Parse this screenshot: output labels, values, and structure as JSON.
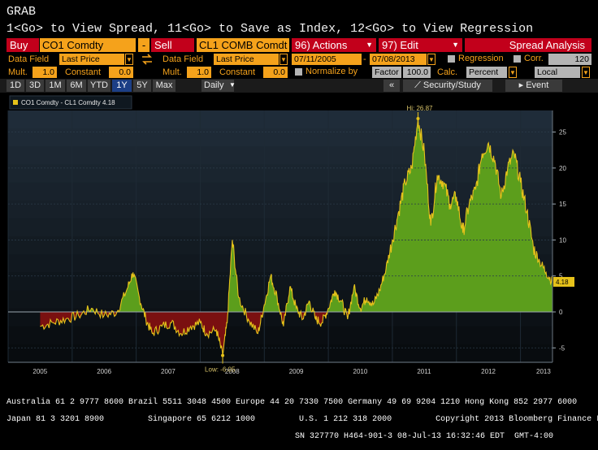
{
  "window": {
    "title": "GRAB",
    "hint": "1<Go> to View Spread, 11<Go> to Save as Index, 12<Go> to View Regression"
  },
  "row1": {
    "buy_label": "Buy",
    "security1": "CO1 Comdty",
    "operator": "-",
    "sell_label": "Sell",
    "security2": "CL1 COMB Comdt",
    "actions_label": "96) Actions",
    "edit_label": "97) Edit",
    "title_label": "Spread Analysis"
  },
  "row2": {
    "data_field_label1": "Data Field",
    "data_field_value1": "Last Price",
    "data_field_label2": "Data Field",
    "data_field_value2": "Last Price",
    "date_start": "07/11/2005",
    "date_end": "07/08/2013",
    "regression_label": "Regression",
    "corr_label": "Corr.",
    "corr_value": "120"
  },
  "row3": {
    "mult_label1": "Mult.",
    "mult_value1": "1.0",
    "constant_label1": "Constant",
    "constant_value1": "0.0",
    "mult_label2": "Mult.",
    "mult_value2": "1.0",
    "constant_label2": "Constant",
    "constant_value2": "0.0",
    "normalize_label": "Normalize by",
    "factor_label": "Factor",
    "factor_value": "100.0",
    "calc_label": "Calc.",
    "calc_value": "Percent",
    "ccy_value": "Local CCY"
  },
  "toolbar": {
    "periods": [
      "1D",
      "3D",
      "1M",
      "6M",
      "YTD",
      "1Y",
      "5Y",
      "Max"
    ],
    "selected_period": "1Y",
    "frequency": "Daily",
    "collapse_label": "«",
    "security_study_label": "Security/Study",
    "event_label": "Event"
  },
  "colors": {
    "positive_fill": "#5c9e1c",
    "negative_fill": "#7a1010",
    "line": "#e6c21a",
    "accent_orange": "#f5a21b",
    "accent_red": "#c2001b"
  },
  "chart_data": {
    "type": "area",
    "legend": "CO1 Comdty - CL1 Comdty 4.18",
    "last_value_label": "4.18",
    "high_label": "Hi: 26.87",
    "low_label": "Low: -6.05",
    "x_tick_labels": [
      "2005",
      "2006",
      "2007",
      "2008",
      "2009",
      "2010",
      "2011",
      "2012",
      "2013"
    ],
    "y_tick_labels": [
      "25",
      "20",
      "15",
      "10",
      "5",
      "0",
      "-5"
    ],
    "ylim": [
      -7,
      28
    ],
    "x": [
      2005.5,
      2005.7,
      2005.9,
      2006.1,
      2006.3,
      2006.5,
      2006.7,
      2006.85,
      2006.95,
      2007.05,
      2007.15,
      2007.25,
      2007.4,
      2007.55,
      2007.7,
      2007.85,
      2008.0,
      2008.1,
      2008.25,
      2008.35,
      2008.42,
      2008.5,
      2008.6,
      2008.75,
      2008.9,
      2009.0,
      2009.1,
      2009.2,
      2009.3,
      2009.4,
      2009.5,
      2009.6,
      2009.7,
      2009.8,
      2009.9,
      2010.0,
      2010.1,
      2010.2,
      2010.3,
      2010.4,
      2010.5,
      2010.6,
      2010.7,
      2010.8,
      2010.9,
      2011.0,
      2011.1,
      2011.2,
      2011.3,
      2011.4,
      2011.5,
      2011.6,
      2011.7,
      2011.8,
      2011.9,
      2012.0,
      2012.1,
      2012.2,
      2012.3,
      2012.4,
      2012.5,
      2012.6,
      2012.7,
      2012.8,
      2012.9,
      2013.0,
      2013.1,
      2013.2,
      2013.3,
      2013.4,
      2013.5
    ],
    "y": [
      -2.0,
      -1.5,
      -1.0,
      -0.5,
      0.5,
      -0.5,
      0.0,
      3.0,
      5.5,
      2.0,
      -1.0,
      -3.0,
      -2.0,
      -1.5,
      -3.0,
      -2.0,
      -1.5,
      -3.0,
      -2.5,
      -6.05,
      -1.5,
      10.0,
      2.0,
      -1.0,
      -3.0,
      1.0,
      5.0,
      2.0,
      -2.0,
      3.5,
      0.5,
      -1.0,
      1.5,
      -1.0,
      -1.5,
      0.5,
      3.0,
      1.5,
      -1.0,
      3.5,
      0.5,
      2.0,
      1.0,
      3.0,
      6.0,
      10.0,
      14.0,
      18.0,
      20.0,
      26.87,
      22.0,
      12.0,
      19.0,
      18.0,
      15.0,
      16.0,
      11.0,
      15.0,
      17.0,
      22.0,
      23.5,
      21.0,
      16.0,
      20.0,
      22.0,
      18.0,
      14.0,
      9.0,
      7.0,
      5.5,
      4.18
    ]
  },
  "footer": {
    "line1": "Australia 61 2 9777 8600 Brazil 5511 3048 4500 Europe 44 20 7330 7500 Germany 49 69 9204 1210 Hong Kong 852 2977 6000",
    "line2": "Japan 81 3 3201 8900         Singapore 65 6212 1000         U.S. 1 212 318 2000         Copyright 2013 Bloomberg Finance L.P.",
    "line3": "SN 327770 H464-901-3 08-Jul-13 16:32:46 EDT  GMT-4:00"
  }
}
